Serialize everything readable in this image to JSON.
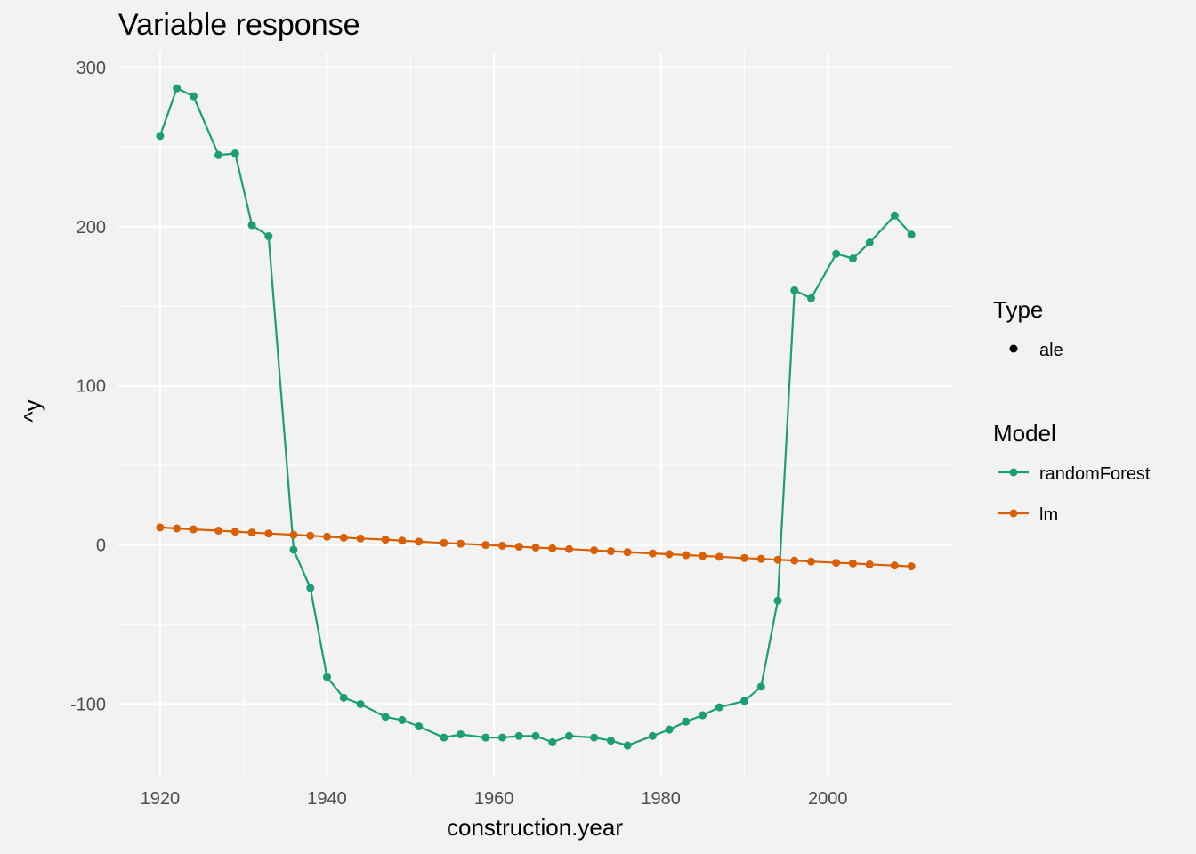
{
  "chart_data": {
    "type": "line",
    "title": "Variable response",
    "xlabel": "construction.year",
    "ylabel": "^y",
    "xlim": [
      1915,
      2015
    ],
    "ylim": [
      -145,
      310
    ],
    "x_ticks": [
      1920,
      1940,
      1960,
      1980,
      2000
    ],
    "y_ticks": [
      -100,
      0,
      100,
      200,
      300
    ],
    "grid": true,
    "legend_position": "right",
    "legend": {
      "type_title": "Type",
      "type_items": [
        {
          "label": "ale"
        }
      ],
      "model_title": "Model"
    },
    "colors": {
      "randomForest": "#1b9e77",
      "lm": "#d95f02"
    },
    "series": [
      {
        "name": "randomForest",
        "x": [
          1920,
          1922,
          1924,
          1927,
          1929,
          1931,
          1933,
          1936,
          1938,
          1940,
          1942,
          1944,
          1947,
          1949,
          1951,
          1954,
          1956,
          1959,
          1961,
          1963,
          1965,
          1967,
          1969,
          1972,
          1974,
          1976,
          1979,
          1981,
          1983,
          1985,
          1987,
          1990,
          1992,
          1994,
          1996,
          1998,
          2001,
          2003,
          2005,
          2008,
          2010
        ],
        "values": [
          257,
          287,
          282,
          245,
          246,
          201,
          194,
          -3,
          -27,
          -83,
          -96,
          -100,
          -108,
          -110,
          -114,
          -121,
          -119,
          -121,
          -121,
          -120,
          -120,
          -124,
          -120,
          -121,
          -123,
          -126,
          -120,
          -116,
          -111,
          -107,
          -102,
          -98,
          -89,
          -35,
          160,
          155,
          183,
          180,
          190,
          207,
          195
        ]
      },
      {
        "name": "lm",
        "x": [
          1920,
          1922,
          1924,
          1927,
          1929,
          1931,
          1933,
          1936,
          1938,
          1940,
          1942,
          1944,
          1947,
          1949,
          1951,
          1954,
          1956,
          1959,
          1961,
          1963,
          1965,
          1967,
          1969,
          1972,
          1974,
          1976,
          1979,
          1981,
          1983,
          1985,
          1987,
          1990,
          1992,
          1994,
          1996,
          1998,
          2001,
          2003,
          2005,
          2008,
          2010
        ],
        "values": [
          11,
          10.4,
          9.8,
          9,
          8.4,
          7.8,
          7.2,
          6.4,
          5.8,
          5.2,
          4.6,
          4.1,
          3.4,
          2.7,
          2.1,
          1.3,
          0.8,
          0,
          -0.5,
          -1.1,
          -1.6,
          -2.1,
          -2.6,
          -3.4,
          -3.9,
          -4.5,
          -5.3,
          -5.8,
          -6.4,
          -6.9,
          -7.4,
          -8.2,
          -8.7,
          -9.3,
          -9.8,
          -10.4,
          -11.2,
          -11.6,
          -12.2,
          -12.9,
          -13.4
        ]
      }
    ]
  }
}
